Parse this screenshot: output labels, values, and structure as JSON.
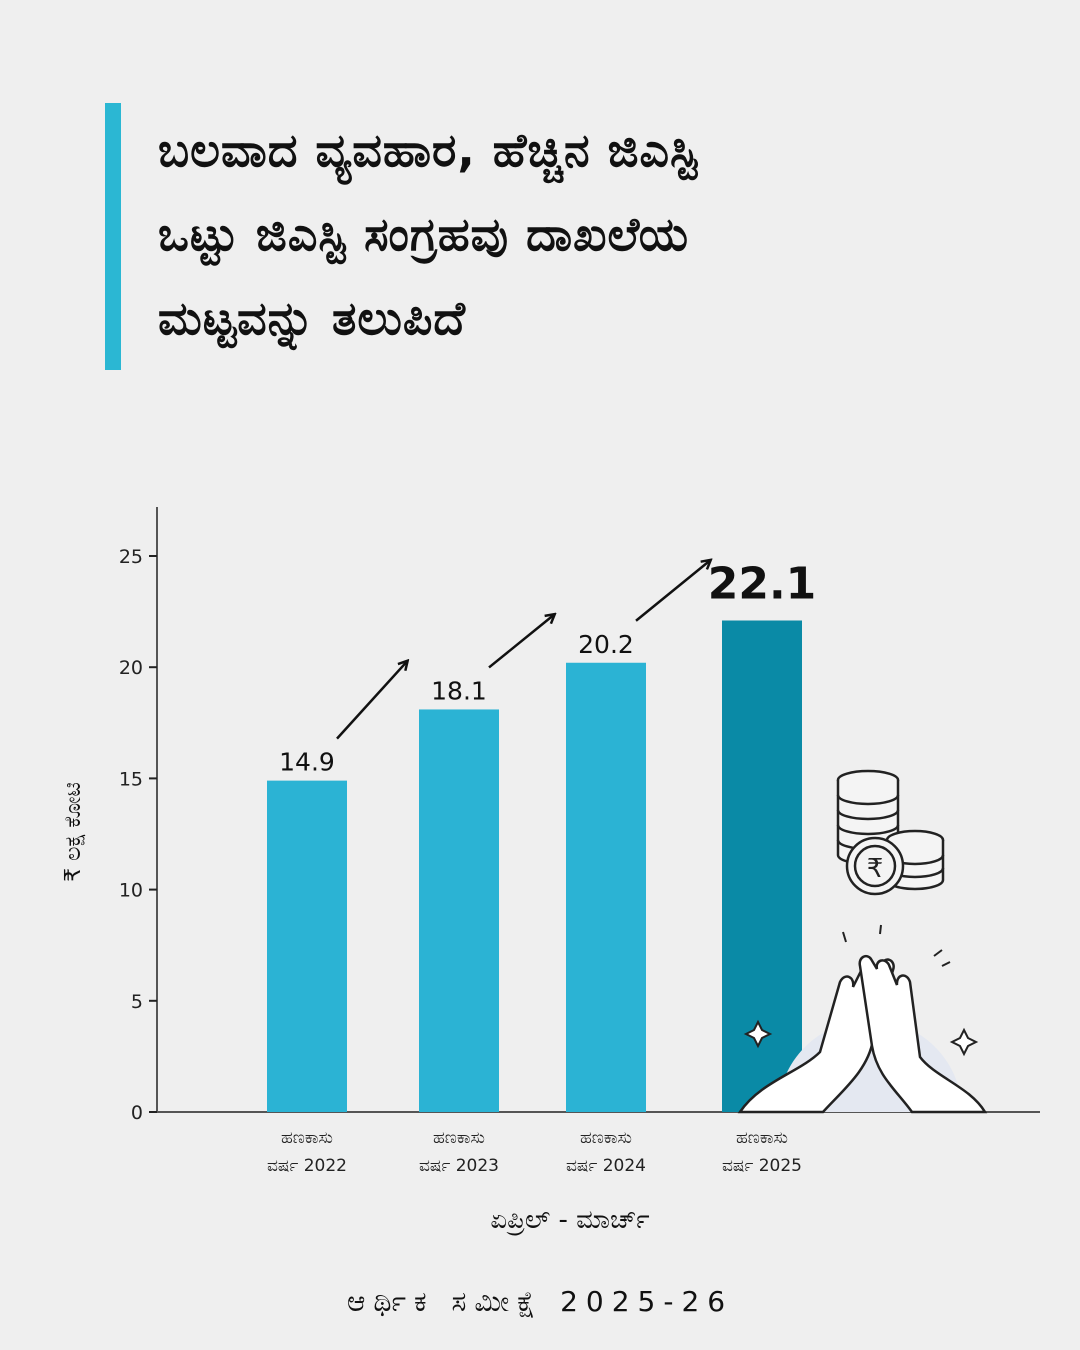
{
  "title": {
    "lines": [
      "ಬಲವಾದ ವ್ಯವಹಾರ, ಹೆಚ್ಚಿನ ಜಿಎಸ್ಟಿ",
      "ಒಟ್ಟು ಜಿಎಸ್ಟಿ ಸಂಗ್ರಹವು ದಾಖಲೆಯ",
      "ಮಟ್ಟವನ್ನು ತಲುಪಿದೆ"
    ]
  },
  "colors": {
    "accent": "#2bb7d3",
    "bar": "#2bb3d4",
    "highlight_bar": "#0a8aa6",
    "background": "#efefef"
  },
  "chart_data": {
    "type": "bar",
    "categories": [
      [
        "ಹಣಕಾಸು",
        "ವರ್ಷ 2022"
      ],
      [
        "ಹಣಕಾಸು",
        "ವರ್ಷ 2023"
      ],
      [
        "ಹಣಕಾಸು",
        "ವರ್ಷ 2024"
      ],
      [
        "ಹಣಕಾಸು",
        "ವರ್ಷ 2025"
      ]
    ],
    "values": [
      14.9,
      18.1,
      20.2,
      22.1
    ],
    "value_labels": [
      "14.9",
      "18.1",
      "20.2",
      "22.1"
    ],
    "highlight_index": 3,
    "ylabel": "₹ ಲಕ್ಷ ಕೋಟಿ",
    "xlabel": "ಏಪ್ರಿಲ್ - ಮಾರ್ಚ್",
    "ylim": [
      0,
      27
    ],
    "yticks": [
      0,
      5,
      10,
      15,
      20,
      25
    ],
    "grid": false,
    "annotations": "arrows between consecutive bars indicating growth"
  },
  "footer": "ಆರ್ಥಿಕ ಸಮೀಕ್ಷೆ 2025-26"
}
